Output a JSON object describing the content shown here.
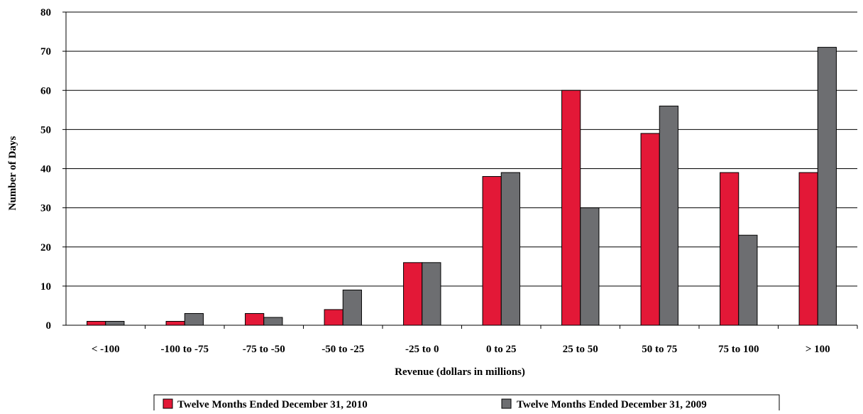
{
  "chart_data": {
    "type": "bar",
    "xlabel": "Revenue (dollars in millions)",
    "ylabel": "Number of Days",
    "ylim": [
      0,
      80
    ],
    "yticks": [
      "0",
      "10",
      "20",
      "30",
      "40",
      "50",
      "60",
      "70",
      "80"
    ],
    "grid": true,
    "legend_position": "bottom",
    "categories": [
      "< -100",
      "-100 to -75",
      "-75 to -50",
      "-50 to -25",
      "-25 to 0",
      "0 to 25",
      "25 to 50",
      "50 to 75",
      "75 to 100",
      "> 100"
    ],
    "series": [
      {
        "name": "Twelve Months Ended December 31, 2010",
        "color": "#e31837",
        "values": [
          1,
          1,
          3,
          4,
          16,
          38,
          60,
          49,
          39,
          39
        ]
      },
      {
        "name": "Twelve Months Ended December 31, 2009",
        "color": "#6d6e71",
        "values": [
          1,
          3,
          2,
          9,
          16,
          39,
          30,
          56,
          23,
          71
        ]
      }
    ]
  }
}
